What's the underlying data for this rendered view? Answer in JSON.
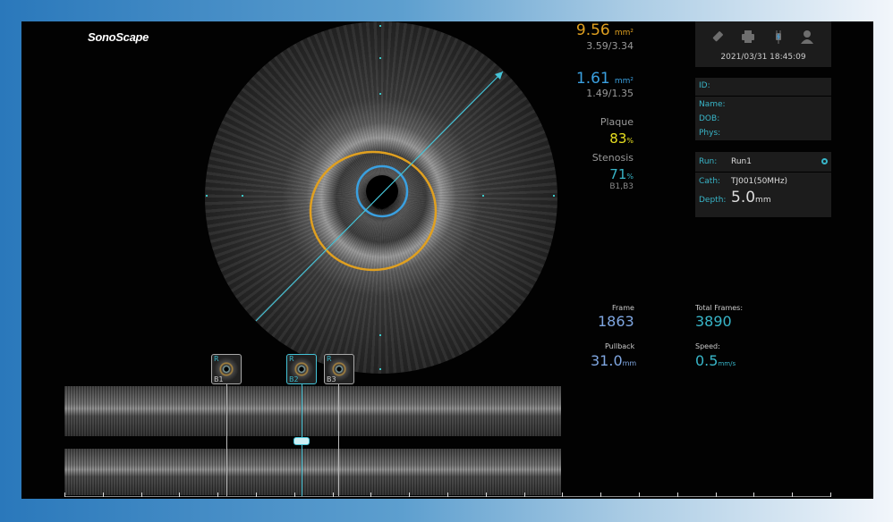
{
  "logo": "SonoScape",
  "measurements": {
    "eem_area": "9.56",
    "eem_unit": "mm²",
    "eem_diam": "3.59/3.34",
    "lumen_area": "1.61",
    "lumen_unit": "mm²",
    "lumen_diam": "1.49/1.35",
    "plaque_label": "Plaque",
    "plaque_value": "83",
    "plaque_unit": "%",
    "stenosis_label": "Stenosis",
    "stenosis_value": "71",
    "stenosis_unit": "%",
    "stenosis_ref": "B1,B3"
  },
  "colors": {
    "eem": "#e0a020",
    "lumen": "#3aa0e0",
    "plaque": "#e8e020",
    "accent": "#38b5c8"
  },
  "status": {
    "icons": [
      "usb-drive-icon",
      "printer-icon",
      "power-plug-icon",
      "user-icon"
    ],
    "datetime": "2021/03/31 18:45:09"
  },
  "patient": {
    "id_label": "ID:",
    "name_label": "Name:",
    "dob_label": "DOB:",
    "phys_label": "Phys:"
  },
  "run": {
    "run_label": "Run:",
    "run_value": "Run1",
    "cath_label": "Cath:",
    "cath_value": "TJ001(50MHz)",
    "depth_label": "Depth:",
    "depth_value": "5.0",
    "depth_unit": "mm"
  },
  "playback": {
    "frame_label": "Frame",
    "frame_value": "1863",
    "total_label": "Total Frames:",
    "total_value": "3890",
    "pullback_label": "Pullback",
    "pullback_value": "31.0",
    "pullback_unit": "mm",
    "speed_label": "Speed:",
    "speed_value": "0.5",
    "speed_unit": "mm/s"
  },
  "bookmarks": [
    {
      "tag": "R",
      "label": "B1"
    },
    {
      "tag": "R",
      "label": "B2",
      "active": true
    },
    {
      "tag": "R",
      "label": "B3"
    }
  ]
}
